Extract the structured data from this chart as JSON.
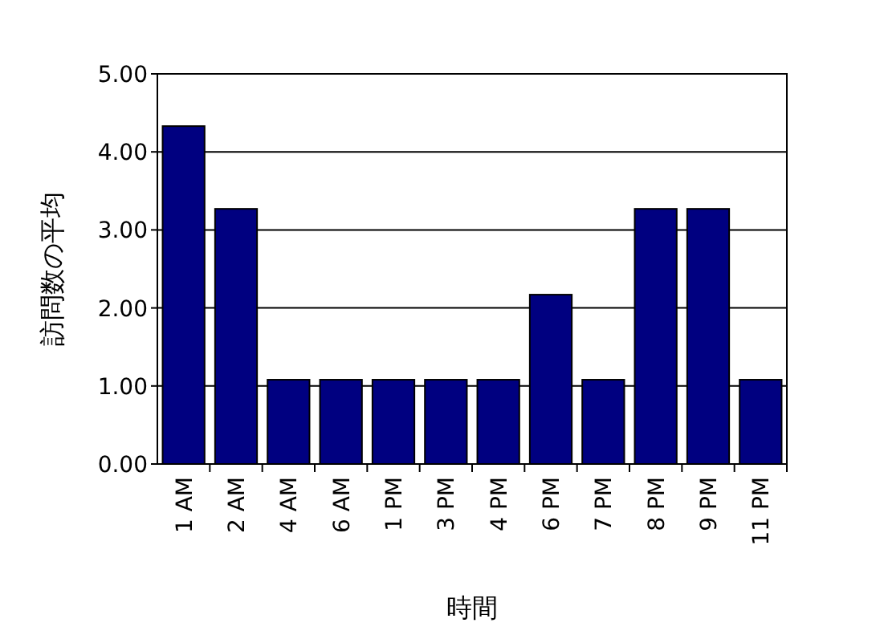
{
  "chart_data": {
    "type": "bar",
    "xlabel": "時間",
    "ylabel": "訪問数の平均",
    "categories": [
      "1 AM",
      "2 AM",
      "4 AM",
      "6 AM",
      "1 PM",
      "3 PM",
      "4 PM",
      "6 PM",
      "7 PM",
      "8 PM",
      "9 PM",
      "11 PM"
    ],
    "values": [
      4.33,
      3.27,
      1.08,
      1.08,
      1.08,
      1.08,
      1.08,
      2.17,
      1.08,
      3.27,
      3.27,
      1.08
    ],
    "color": "#000080",
    "ylim": [
      0,
      5
    ],
    "yticks": [
      {
        "value": 0,
        "label": "0.00"
      },
      {
        "value": 1,
        "label": "1.00"
      },
      {
        "value": 2,
        "label": "2.00"
      },
      {
        "value": 3,
        "label": "3.00"
      },
      {
        "value": 4,
        "label": "4.00"
      },
      {
        "value": 5,
        "label": "5.00"
      }
    ],
    "grid": "y"
  }
}
